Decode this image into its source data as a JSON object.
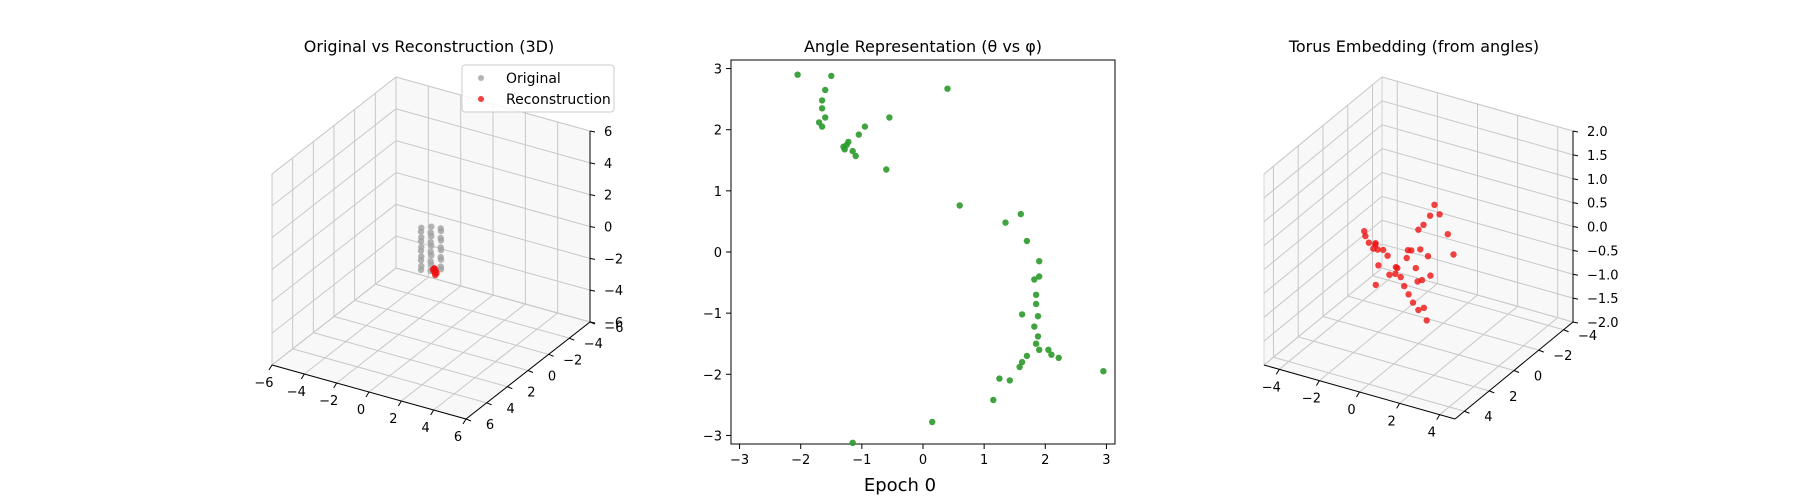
{
  "suptitle": "Epoch 0",
  "colors": {
    "original": "#a0a0a0",
    "reconstruction": "#ee1111",
    "angles": "#2a9a2a"
  },
  "chart_data": [
    {
      "type": "scatter3d",
      "title": "Original vs Reconstruction (3D)",
      "xlim": [
        -6,
        6
      ],
      "ylim": [
        -6,
        6
      ],
      "zlim": [
        -6,
        6
      ],
      "xticks": [
        "−6",
        "−4",
        "−2",
        "0",
        "2",
        "4",
        "6"
      ],
      "yticks": [
        "−6",
        "−4",
        "−2",
        "0",
        "2",
        "4",
        "6"
      ],
      "zticks": [
        "−6",
        "−4",
        "−2",
        "0",
        "2",
        "4",
        "6"
      ],
      "legend": {
        "position": "upper right",
        "entries": [
          "Original",
          "Reconstruction"
        ]
      },
      "series": [
        {
          "name": "Original",
          "points": [
            [
              0.6,
              0,
              1.4
            ],
            [
              0.3,
              0.5,
              1.3
            ],
            [
              -0.3,
              0.5,
              1.2
            ],
            [
              -0.6,
              0,
              1.1
            ],
            [
              -0.3,
              -0.5,
              1.0
            ],
            [
              0.3,
              -0.5,
              0.9
            ],
            [
              0.6,
              0,
              0.8
            ],
            [
              0.3,
              0.5,
              0.7
            ],
            [
              -0.3,
              0.5,
              0.6
            ],
            [
              -0.6,
              0,
              0.5
            ],
            [
              -0.3,
              -0.5,
              0.4
            ],
            [
              0.3,
              -0.5,
              0.3
            ],
            [
              0.6,
              0,
              0.2
            ],
            [
              0.3,
              0.5,
              0.1
            ],
            [
              -0.3,
              0.5,
              0.0
            ],
            [
              -0.6,
              0,
              -0.1
            ],
            [
              -0.3,
              -0.5,
              -0.2
            ],
            [
              0.3,
              -0.5,
              -0.3
            ],
            [
              0.6,
              0,
              -0.4
            ],
            [
              0.3,
              0.5,
              -0.5
            ],
            [
              -0.3,
              0.5,
              -0.6
            ],
            [
              -0.6,
              0,
              -0.7
            ],
            [
              -0.3,
              -0.5,
              -0.8
            ],
            [
              0.3,
              -0.5,
              -0.9
            ],
            [
              0.6,
              0,
              -1.0
            ],
            [
              0.3,
              0.5,
              -1.1
            ],
            [
              -0.3,
              0.5,
              -1.2
            ],
            [
              -0.6,
              0,
              -1.3
            ],
            [
              -0.3,
              -0.5,
              -1.4
            ],
            [
              0.3,
              -0.5,
              -1.5
            ]
          ]
        },
        {
          "name": "Reconstruction",
          "points": [
            [
              0.05,
              -0.25,
              -1.4
            ],
            [
              0.1,
              -0.2,
              -1.5
            ],
            [
              0.15,
              -0.15,
              -1.6
            ],
            [
              0.2,
              -0.1,
              -1.7
            ],
            [
              0.1,
              -0.3,
              -1.55
            ],
            [
              0.0,
              -0.2,
              -1.45
            ],
            [
              0.18,
              -0.25,
              -1.65
            ],
            [
              0.08,
              -0.15,
              -1.5
            ],
            [
              0.12,
              -0.22,
              -1.58
            ],
            [
              0.03,
              -0.28,
              -1.42
            ]
          ]
        }
      ]
    },
    {
      "type": "scatter",
      "title": "Angle Representation (θ vs φ)",
      "xlim": [
        -3.14,
        3.14
      ],
      "ylim": [
        -3.14,
        3.14
      ],
      "xticks": [
        -3,
        -2,
        -1,
        0,
        1,
        2,
        3
      ],
      "yticks": [
        -3,
        -2,
        -1,
        0,
        1,
        2,
        3
      ],
      "xticklabels": [
        "−3",
        "−2",
        "−1",
        "0",
        "1",
        "2",
        "3"
      ],
      "yticklabels": [
        "−3",
        "−2",
        "−1",
        "0",
        "1",
        "2",
        "3"
      ],
      "series": [
        {
          "points": [
            [
              -2.05,
              2.9
            ],
            [
              -1.5,
              2.88
            ],
            [
              0.4,
              2.67
            ],
            [
              -1.6,
              2.65
            ],
            [
              -1.65,
              2.48
            ],
            [
              -1.65,
              2.35
            ],
            [
              -1.6,
              2.2
            ],
            [
              -1.7,
              2.12
            ],
            [
              -1.65,
              2.05
            ],
            [
              -0.55,
              2.2
            ],
            [
              -1.3,
              1.72
            ],
            [
              -1.28,
              1.68
            ],
            [
              -1.22,
              1.8
            ],
            [
              -1.15,
              1.65
            ],
            [
              -1.05,
              1.92
            ],
            [
              -0.95,
              2.05
            ],
            [
              -1.1,
              1.57
            ],
            [
              -1.25,
              1.75
            ],
            [
              -0.6,
              1.35
            ],
            [
              0.6,
              0.76
            ],
            [
              1.35,
              0.48
            ],
            [
              1.6,
              0.62
            ],
            [
              1.7,
              0.18
            ],
            [
              1.9,
              -0.15
            ],
            [
              1.82,
              -0.45
            ],
            [
              1.9,
              -0.4
            ],
            [
              1.85,
              -0.7
            ],
            [
              1.85,
              -0.85
            ],
            [
              1.62,
              -1.02
            ],
            [
              1.88,
              -1.05
            ],
            [
              1.82,
              -1.22
            ],
            [
              1.88,
              -1.38
            ],
            [
              1.85,
              -1.5
            ],
            [
              1.9,
              -1.6
            ],
            [
              1.7,
              -1.7
            ],
            [
              1.62,
              -1.8
            ],
            [
              1.58,
              -1.88
            ],
            [
              2.05,
              -1.6
            ],
            [
              2.1,
              -1.68
            ],
            [
              2.22,
              -1.73
            ],
            [
              1.25,
              -2.07
            ],
            [
              1.42,
              -2.1
            ],
            [
              1.15,
              -2.42
            ],
            [
              2.95,
              -1.95
            ],
            [
              0.15,
              -2.78
            ],
            [
              -1.15,
              -3.12
            ]
          ]
        }
      ]
    },
    {
      "type": "scatter3d",
      "title": "Torus Embedding (from angles)",
      "xlim": [
        -5,
        5
      ],
      "ylim": [
        -5,
        5
      ],
      "zlim": [
        -2,
        2
      ],
      "xticks": [
        "−4",
        "−2",
        "0",
        "2",
        "4"
      ],
      "yticks": [
        "−4",
        "−2",
        "0",
        "2",
        "4"
      ],
      "zticks": [
        "−2.0",
        "−1.5",
        "−1.0",
        "−0.5",
        "0.0",
        "0.5",
        "1.0",
        "1.5",
        "2.0"
      ],
      "series": [
        {
          "points": [
            [
              -3.2,
              0.3,
              0.1
            ],
            [
              -3.0,
              0.5,
              0.05
            ],
            [
              -2.6,
              0.8,
              0.0
            ],
            [
              -2.2,
              1.0,
              -0.05
            ],
            [
              -1.8,
              1.2,
              0.0
            ],
            [
              -1.4,
              1.3,
              0.05
            ],
            [
              -1.0,
              1.5,
              0.0
            ],
            [
              -3.0,
              -0.5,
              -0.3
            ],
            [
              -2.8,
              -0.2,
              -0.2
            ],
            [
              -2.5,
              0.0,
              -0.6
            ],
            [
              -2.0,
              -0.3,
              -0.8
            ],
            [
              -1.5,
              -0.1,
              -0.7
            ],
            [
              -1.2,
              0.2,
              -0.5
            ],
            [
              -0.8,
              0.5,
              -0.6
            ],
            [
              -0.4,
              0.8,
              -0.7
            ],
            [
              0.0,
              1.0,
              -0.8
            ],
            [
              0.4,
              1.2,
              -0.9
            ],
            [
              0.8,
              1.3,
              -1.0
            ],
            [
              1.2,
              1.4,
              -0.9
            ],
            [
              1.5,
              1.6,
              -1.1
            ],
            [
              0.2,
              0.6,
              -0.3
            ],
            [
              0.5,
              0.9,
              -0.5
            ],
            [
              0.9,
              1.1,
              -0.4
            ],
            [
              -0.5,
              -0.8,
              0.2
            ],
            [
              0.0,
              -0.5,
              0.4
            ],
            [
              0.6,
              -0.2,
              0.7
            ],
            [
              1.0,
              0.0,
              1.0
            ],
            [
              1.5,
              0.3,
              0.9
            ],
            [
              2.2,
              0.6,
              0.6
            ],
            [
              2.8,
              1.0,
              0.3
            ],
            [
              -3.4,
              -1.2,
              -1.3
            ],
            [
              -2.4,
              -1.6,
              -0.9
            ],
            [
              -1.6,
              -1.4,
              -0.6
            ],
            [
              0.3,
              0.3,
              0.05
            ],
            [
              -0.2,
              0.4,
              0.0
            ],
            [
              0.9,
              0.5,
              0.0
            ],
            [
              1.3,
              0.9,
              -0.3
            ],
            [
              -0.9,
              -0.4,
              -0.2
            ]
          ]
        }
      ]
    }
  ]
}
